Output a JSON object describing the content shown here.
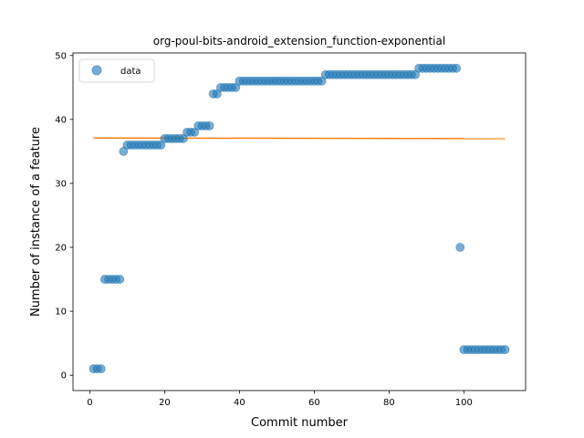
{
  "chart_data": {
    "type": "scatter",
    "title": "org-poul-bits-android_extension_function-exponential",
    "xlabel": "Commit number",
    "ylabel": "Number of instance of a feature",
    "xlim": [
      -4.5,
      116.5
    ],
    "ylim": [
      -2.4,
      50.4
    ],
    "xticks": [
      0,
      20,
      40,
      60,
      80,
      100
    ],
    "yticks": [
      0,
      10,
      20,
      30,
      40,
      50
    ],
    "grid": false,
    "legend": {
      "position": "upper left",
      "entries": [
        "data"
      ]
    },
    "colors": {
      "data": "#1f77b4",
      "fit": "#ff7f0e"
    },
    "series": [
      {
        "name": "data",
        "kind": "scatter",
        "x": [
          1,
          2,
          3,
          4,
          5,
          6,
          7,
          8,
          9,
          10,
          11,
          12,
          13,
          14,
          15,
          16,
          17,
          18,
          19,
          20,
          21,
          22,
          23,
          24,
          25,
          26,
          27,
          28,
          29,
          30,
          31,
          32,
          33,
          34,
          35,
          36,
          37,
          38,
          39,
          40,
          41,
          42,
          43,
          44,
          45,
          46,
          47,
          48,
          49,
          50,
          51,
          52,
          53,
          54,
          55,
          56,
          57,
          58,
          59,
          60,
          61,
          62,
          63,
          64,
          65,
          66,
          67,
          68,
          69,
          70,
          71,
          72,
          73,
          74,
          75,
          76,
          77,
          78,
          79,
          80,
          81,
          82,
          83,
          84,
          85,
          86,
          87,
          88,
          89,
          90,
          91,
          92,
          93,
          94,
          95,
          96,
          97,
          98,
          99,
          100,
          101,
          102,
          103,
          104,
          105,
          106,
          107,
          108,
          109,
          110,
          111
        ],
        "y": [
          1,
          1,
          1,
          15,
          15,
          15,
          15,
          15,
          35,
          36,
          36,
          36,
          36,
          36,
          36,
          36,
          36,
          36,
          36,
          37,
          37,
          37,
          37,
          37,
          37,
          38,
          38,
          38,
          39,
          39,
          39,
          39,
          44,
          44,
          45,
          45,
          45,
          45,
          45,
          46,
          46,
          46,
          46,
          46,
          46,
          46,
          46,
          46,
          46,
          46,
          46,
          46,
          46,
          46,
          46,
          46,
          46,
          46,
          46,
          46,
          46,
          46,
          47,
          47,
          47,
          47,
          47,
          47,
          47,
          47,
          47,
          47,
          47,
          47,
          47,
          47,
          47,
          47,
          47,
          47,
          47,
          47,
          47,
          47,
          47,
          47,
          47,
          48,
          48,
          48,
          48,
          48,
          48,
          48,
          48,
          48,
          48,
          48,
          20,
          4,
          4,
          4,
          4,
          4,
          4,
          4,
          4,
          4,
          4,
          4,
          4
        ]
      },
      {
        "kind": "line",
        "x": [
          1,
          111
        ],
        "y": [
          37.1,
          37.0
        ]
      }
    ]
  }
}
